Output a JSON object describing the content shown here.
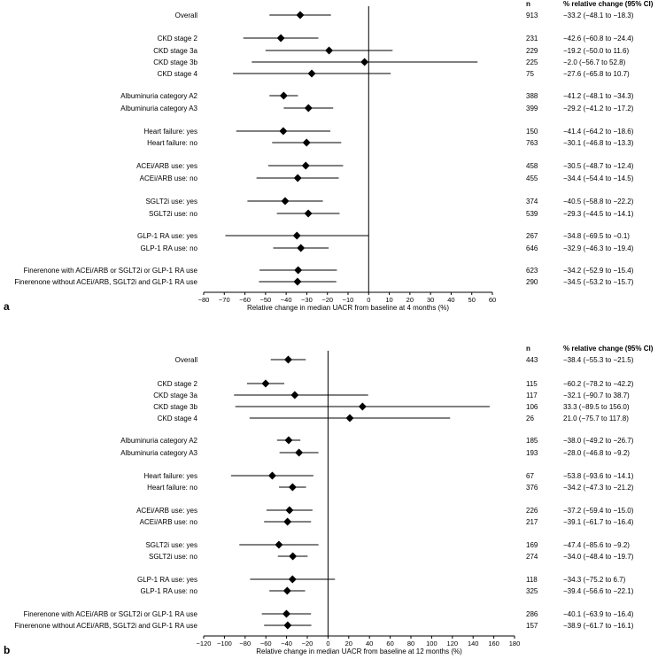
{
  "chart_data": [
    {
      "type": "forest",
      "panel_label": "a",
      "xlabel": "Relative change in median UACR from baseline at 4 months (%)",
      "xlim": [
        -80,
        60
      ],
      "xticks": [
        -80,
        -70,
        -60,
        -50,
        -40,
        -30,
        -20,
        -10,
        0,
        10,
        20,
        30,
        40,
        50,
        60
      ],
      "reference_line": 0,
      "n_header": "n",
      "ci_header": "% relative change (95% CI)",
      "rows": [
        {
          "label": "Overall",
          "n": "913",
          "ci_text": "−33.2 (−48.1 to −18.3)",
          "est": -33.2,
          "lo": -48.1,
          "hi": -18.3,
          "group": 0
        },
        {
          "label": "CKD stage 2",
          "n": "231",
          "ci_text": "−42.6 (−60.8 to −24.4)",
          "est": -42.6,
          "lo": -60.8,
          "hi": -24.4,
          "group": 1
        },
        {
          "label": "CKD stage 3a",
          "n": "229",
          "ci_text": "−19.2 (−50.0 to 11.6)",
          "est": -19.2,
          "lo": -50.0,
          "hi": 11.6,
          "group": 1
        },
        {
          "label": "CKD stage 3b",
          "n": "225",
          "ci_text": "−2.0 (−56.7 to 52.8)",
          "est": -2.0,
          "lo": -56.7,
          "hi": 52.8,
          "group": 1
        },
        {
          "label": "CKD stage 4",
          "n": "75",
          "ci_text": "−27.6 (−65.8 to 10.7)",
          "est": -27.6,
          "lo": -65.8,
          "hi": 10.7,
          "group": 1
        },
        {
          "label": "Albuminuria category A2",
          "n": "388",
          "ci_text": "−41.2 (−48.1 to −34.3)",
          "est": -41.2,
          "lo": -48.1,
          "hi": -34.3,
          "group": 2
        },
        {
          "label": "Albuminuria category A3",
          "n": "399",
          "ci_text": "−29.2 (−41.2 to −17.2)",
          "est": -29.2,
          "lo": -41.2,
          "hi": -17.2,
          "group": 2
        },
        {
          "label": "Heart failure: yes",
          "n": "150",
          "ci_text": "−41.4 (−64.2 to −18.6)",
          "est": -41.4,
          "lo": -64.2,
          "hi": -18.6,
          "group": 3
        },
        {
          "label": "Heart failure: no",
          "n": "763",
          "ci_text": "−30.1 (−46.8 to −13.3)",
          "est": -30.1,
          "lo": -46.8,
          "hi": -13.3,
          "group": 3
        },
        {
          "label": "ACEi/ARB use: yes",
          "n": "458",
          "ci_text": "−30.5 (−48.7 to −12.4)",
          "est": -30.5,
          "lo": -48.7,
          "hi": -12.4,
          "group": 4
        },
        {
          "label": "ACEi/ARB use: no",
          "n": "455",
          "ci_text": "−34.4 (−54.4 to −14.5)",
          "est": -34.4,
          "lo": -54.4,
          "hi": -14.5,
          "group": 4
        },
        {
          "label": "SGLT2i use: yes",
          "n": "374",
          "ci_text": "−40.5 (−58.8 to −22.2)",
          "est": -40.5,
          "lo": -58.8,
          "hi": -22.2,
          "group": 5
        },
        {
          "label": "SGLT2i use: no",
          "n": "539",
          "ci_text": "−29.3 (−44.5 to −14.1)",
          "est": -29.3,
          "lo": -44.5,
          "hi": -14.1,
          "group": 5
        },
        {
          "label": "GLP-1 RA use: yes",
          "n": "267",
          "ci_text": "−34.8 (−69.5 to −0.1)",
          "est": -34.8,
          "lo": -69.5,
          "hi": -0.1,
          "group": 6
        },
        {
          "label": "GLP-1 RA use: no",
          "n": "646",
          "ci_text": "−32.9 (−46.3 to −19.4)",
          "est": -32.9,
          "lo": -46.3,
          "hi": -19.4,
          "group": 6
        },
        {
          "label": "Finerenone with ACEi/ARB or SGLT2i or GLP-1 RA use",
          "n": "623",
          "ci_text": "−34.2 (−52.9 to −15.4)",
          "est": -34.2,
          "lo": -52.9,
          "hi": -15.4,
          "group": 7
        },
        {
          "label": "Finerenone without ACEi/ARB, SGLT2i and GLP-1 RA use",
          "n": "290",
          "ci_text": "−34.5 (−53.2 to −15.7)",
          "est": -34.5,
          "lo": -53.2,
          "hi": -15.7,
          "group": 7
        }
      ]
    },
    {
      "type": "forest",
      "panel_label": "b",
      "xlabel": "Relative change in median UACR from baseline at 12 months (%)",
      "xlim": [
        -120,
        180
      ],
      "xticks": [
        -120,
        -100,
        -80,
        -60,
        -40,
        -20,
        0,
        20,
        40,
        60,
        80,
        100,
        120,
        140,
        160,
        180
      ],
      "reference_line": 0,
      "n_header": "n",
      "ci_header": "% relative change (95% CI)",
      "rows": [
        {
          "label": "Overall",
          "n": "443",
          "ci_text": "−38.4 (−55.3 to −21.5)",
          "est": -38.4,
          "lo": -55.3,
          "hi": -21.5,
          "group": 0
        },
        {
          "label": "CKD stage 2",
          "n": "115",
          "ci_text": "−60.2 (−78.2 to −42.2)",
          "est": -60.2,
          "lo": -78.2,
          "hi": -42.2,
          "group": 1
        },
        {
          "label": "CKD stage 3a",
          "n": "117",
          "ci_text": "−32.1 (−90.7 to 38.7)",
          "est": -32.1,
          "lo": -90.7,
          "hi": 38.7,
          "group": 1
        },
        {
          "label": "CKD stage 3b",
          "n": "106",
          "ci_text": "33.3 (−89.5 to 156.0)",
          "est": 33.3,
          "lo": -89.5,
          "hi": 156.0,
          "group": 1
        },
        {
          "label": "CKD stage 4",
          "n": "26",
          "ci_text": "21.0 (−75.7 to 117.8)",
          "est": 21.0,
          "lo": -75.7,
          "hi": 117.8,
          "group": 1
        },
        {
          "label": "Albuminuria category A2",
          "n": "185",
          "ci_text": "−38.0 (−49.2 to −26.7)",
          "est": -38.0,
          "lo": -49.2,
          "hi": -26.7,
          "group": 2
        },
        {
          "label": "Albuminuria category A3",
          "n": "193",
          "ci_text": "−28.0 (−46.8 to −9.2)",
          "est": -28.0,
          "lo": -46.8,
          "hi": -9.2,
          "group": 2
        },
        {
          "label": "Heart failure: yes",
          "n": "67",
          "ci_text": "−53.8 (−93.6 to −14.1)",
          "est": -53.8,
          "lo": -93.6,
          "hi": -14.1,
          "group": 3
        },
        {
          "label": "Heart failure: no",
          "n": "376",
          "ci_text": "−34.2 (−47.3 to −21.2)",
          "est": -34.2,
          "lo": -47.3,
          "hi": -21.2,
          "group": 3
        },
        {
          "label": "ACEi/ARB use: yes",
          "n": "226",
          "ci_text": "−37.2 (−59.4 to −15.0)",
          "est": -37.2,
          "lo": -59.4,
          "hi": -15.0,
          "group": 4
        },
        {
          "label": "ACEi/ARB use: no",
          "n": "217",
          "ci_text": "−39.1 (−61.7 to −16.4)",
          "est": -39.1,
          "lo": -61.7,
          "hi": -16.4,
          "group": 4
        },
        {
          "label": "SGLT2i use: yes",
          "n": "169",
          "ci_text": "−47.4 (−85.6 to −9.2)",
          "est": -47.4,
          "lo": -85.6,
          "hi": -9.2,
          "group": 5
        },
        {
          "label": "SGLT2i use: no",
          "n": "274",
          "ci_text": "−34.0 (−48.4 to −19.7)",
          "est": -34.0,
          "lo": -48.4,
          "hi": -19.7,
          "group": 5
        },
        {
          "label": "GLP-1 RA use: yes",
          "n": "118",
          "ci_text": "−34.3 (−75.2 to 6.7)",
          "est": -34.3,
          "lo": -75.2,
          "hi": 6.7,
          "group": 6
        },
        {
          "label": "GLP-1 RA use: no",
          "n": "325",
          "ci_text": "−39.4 (−56.6 to −22.1)",
          "est": -39.4,
          "lo": -56.6,
          "hi": -22.1,
          "group": 6
        },
        {
          "label": "Finerenone with ACEi/ARB or SGLT2i or GLP-1 RA use",
          "n": "286",
          "ci_text": "−40.1 (−63.9 to −16.4)",
          "est": -40.1,
          "lo": -63.9,
          "hi": -16.4,
          "group": 7
        },
        {
          "label": "Finerenone without ACEi/ARB, SGLT2i and GLP-1 RA use",
          "n": "157",
          "ci_text": "−38.9 (−61.7 to −16.1)",
          "est": -38.9,
          "lo": -61.7,
          "hi": -16.1,
          "group": 7
        }
      ]
    }
  ]
}
